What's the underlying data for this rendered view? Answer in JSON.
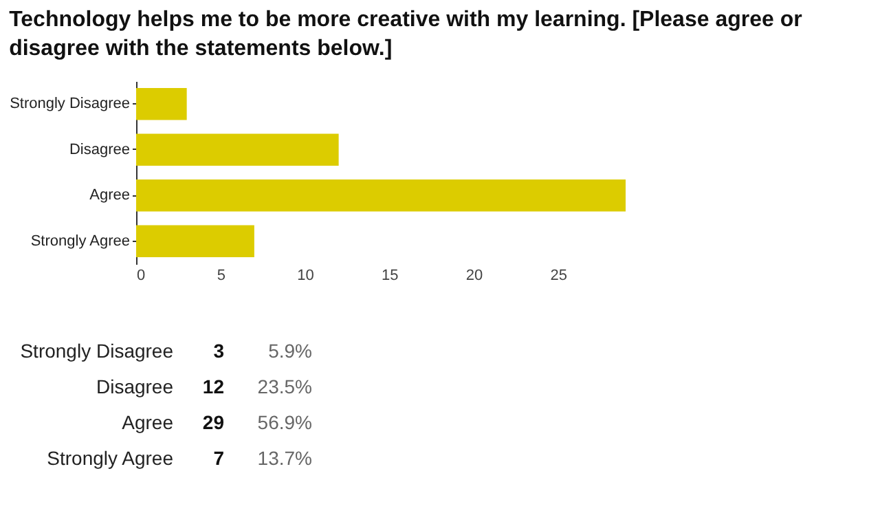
{
  "chart_data": [
    {
      "type": "bar",
      "orientation": "horizontal",
      "title": "Technology helps me to be more creative with my learning. [Please agree or disagree with the statements below.]",
      "categories": [
        "Strongly Disagree",
        "Disagree",
        "Agree",
        "Strongly Agree"
      ],
      "values": [
        3,
        12,
        29,
        7
      ],
      "color": "#dccc00",
      "xlim": [
        0,
        29
      ],
      "xticks": [
        0,
        5,
        10,
        15,
        20,
        25
      ],
      "grid": false
    },
    {
      "type": "other",
      "categories": [
        "Strongly Disagree",
        "Disagree",
        "Agree",
        "Strongly Agree"
      ],
      "annotations": [
        "3",
        "5.9%",
        "12",
        "23.5%",
        "29",
        "56.9%",
        "7",
        "13.7%"
      ]
    }
  ]
}
